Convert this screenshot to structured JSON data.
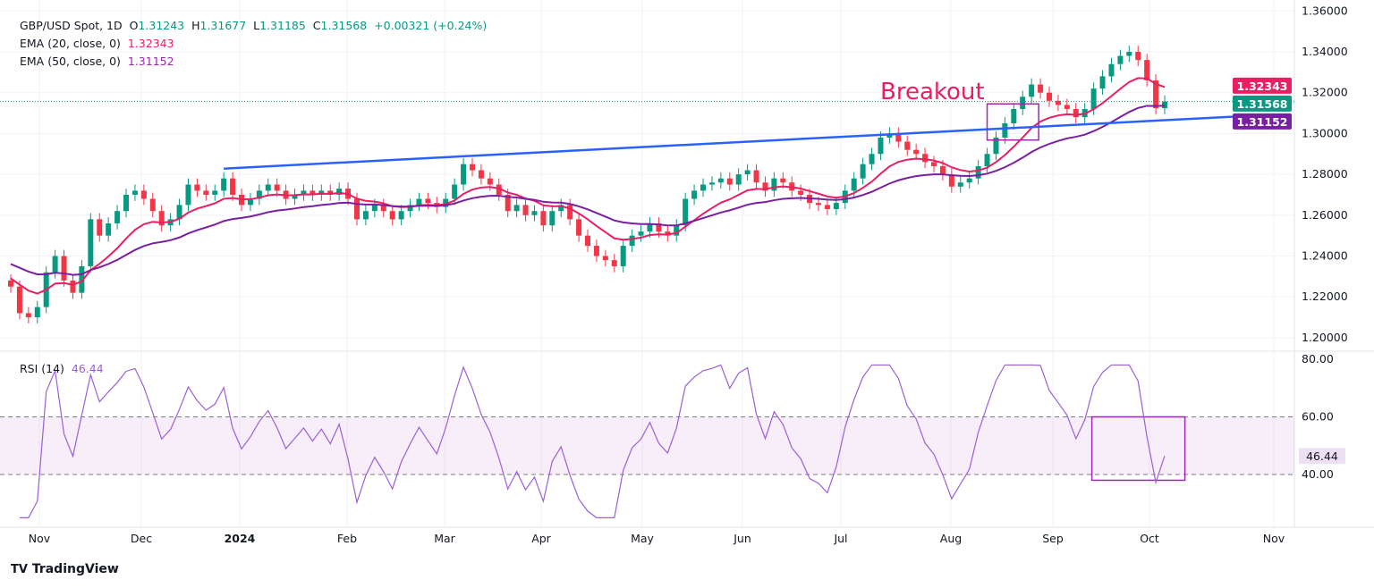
{
  "header": {
    "symbol": "GBP/USD Spot, 1D",
    "o_label": "O",
    "open": "1.31243",
    "h_label": "H",
    "high": "1.31677",
    "l_label": "L",
    "low": "1.31185",
    "c_label": "C",
    "close": "1.31568",
    "change": "+0.00321 (+0.24%)",
    "ema20_label": "EMA (20, close, 0)",
    "ema20_value": "1.32343",
    "ema50_label": "EMA (50, close, 0)",
    "ema50_value": "1.31152",
    "rsi_label": "RSI (14)",
    "rsi_value": "46.44"
  },
  "annotation": "Breakout",
  "brand": "TradingView",
  "colors": {
    "up": "#089981",
    "down": "#f23645",
    "ema20": "#e91e63",
    "ema50": "#7b1fa2",
    "trend": "#2962ff",
    "rsi": "#9c5fd6",
    "box": "#9c27b0"
  },
  "chart_data": {
    "type": "candlestick",
    "title": "GBP/USD Spot, 1D",
    "price_axis": {
      "ylim": [
        1.2,
        1.36
      ],
      "ticks": [
        "1.20000",
        "1.22000",
        "1.24000",
        "1.26000",
        "1.28000",
        "1.30000",
        "1.32000",
        "1.34000",
        "1.36000"
      ]
    },
    "rsi_axis": {
      "ticks": [
        "40.00",
        "60.00",
        "80.00"
      ],
      "bands": [
        40,
        60
      ]
    },
    "time_ticks": [
      "Nov",
      "Dec",
      "2024",
      "Feb",
      "Mar",
      "Apr",
      "May",
      "Jun",
      "Jul",
      "Aug",
      "Sep",
      "Oct",
      "Nov"
    ],
    "price_labels": {
      "ema20": "1.32343",
      "close": "1.31568",
      "ema50": "1.31152",
      "rsi": "46.44"
    },
    "closes": [
      1.225,
      1.212,
      1.21,
      1.215,
      1.232,
      1.24,
      1.228,
      1.222,
      1.235,
      1.258,
      1.25,
      1.256,
      1.262,
      1.27,
      1.272,
      1.268,
      1.262,
      1.255,
      1.258,
      1.265,
      1.275,
      1.272,
      1.27,
      1.272,
      1.278,
      1.27,
      1.265,
      1.268,
      1.272,
      1.275,
      1.272,
      1.268,
      1.27,
      1.272,
      1.27,
      1.272,
      1.27,
      1.273,
      1.268,
      1.258,
      1.262,
      1.265,
      1.262,
      1.258,
      1.262,
      1.265,
      1.268,
      1.266,
      1.264,
      1.268,
      1.275,
      1.285,
      1.282,
      1.278,
      1.275,
      1.27,
      1.262,
      1.265,
      1.26,
      1.262,
      1.255,
      1.262,
      1.265,
      1.258,
      1.25,
      1.245,
      1.24,
      1.238,
      1.235,
      1.245,
      1.25,
      1.252,
      1.256,
      1.252,
      1.25,
      1.255,
      1.268,
      1.272,
      1.275,
      1.276,
      1.278,
      1.275,
      1.28,
      1.282,
      1.276,
      1.272,
      1.278,
      1.276,
      1.272,
      1.27,
      1.266,
      1.265,
      1.263,
      1.266,
      1.272,
      1.278,
      1.285,
      1.29,
      1.298,
      1.3,
      1.296,
      1.292,
      1.29,
      1.286,
      1.284,
      1.28,
      1.274,
      1.276,
      1.278,
      1.284,
      1.29,
      1.298,
      1.305,
      1.312,
      1.318,
      1.324,
      1.32,
      1.316,
      1.314,
      1.312,
      1.308,
      1.312,
      1.322,
      1.328,
      1.334,
      1.338,
      1.34,
      1.336,
      1.326,
      1.3124,
      1.31568
    ],
    "trendline": {
      "from_index": 24,
      "from_price": 1.2828,
      "to_price": 1.3085,
      "extends_past_last_by_days": 40
    },
    "breakout_box": {
      "from_index": 110,
      "to_index": 115,
      "price_high": 1.3145,
      "price_low": 1.2968
    },
    "rsi_box": {
      "from_index": 122,
      "rsi_high": 60,
      "rsi_low": 38
    }
  }
}
